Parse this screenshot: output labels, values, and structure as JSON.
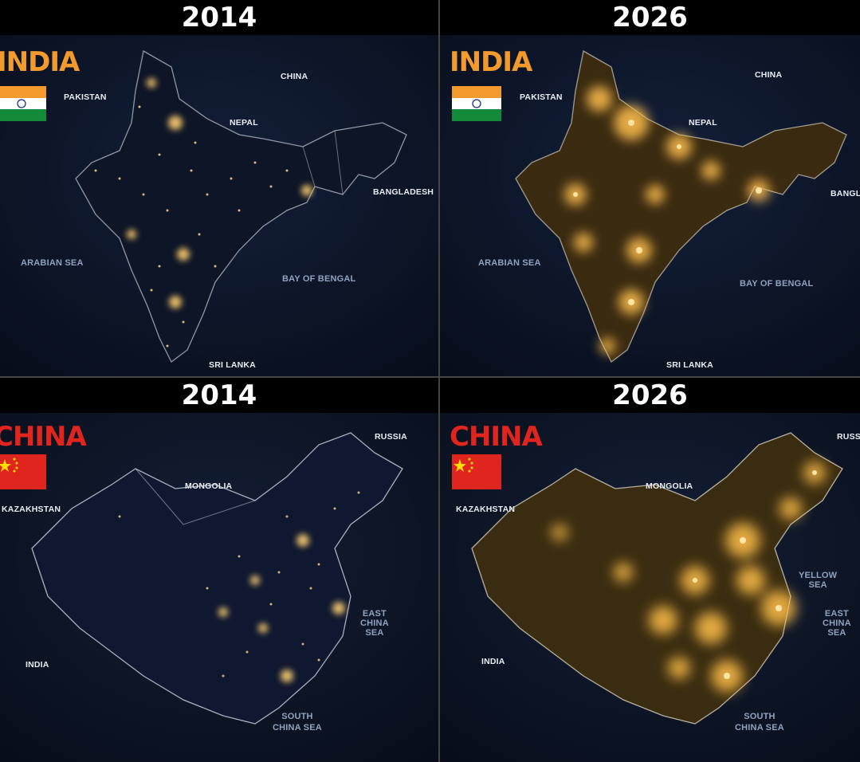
{
  "panels": [
    {
      "year": "2014",
      "country": "INDIA",
      "country_color": "#f29a2e",
      "flag": "india-flag",
      "labels": [
        "PAKISTAN",
        "CHINA",
        "NEPAL",
        "BANGLADESH",
        "ARABIAN SEA",
        "BAY OF BENGAL",
        "SRI LANKA"
      ]
    },
    {
      "year": "2026",
      "country": "INDIA",
      "country_color": "#f29a2e",
      "flag": "india-flag",
      "labels": [
        "PAKISTAN",
        "CHINA",
        "NEPAL",
        "BANGLA",
        "ARABIAN SEA",
        "BAY OF BENGAL",
        "SRI LANKA"
      ]
    },
    {
      "year": "2014",
      "country": "CHINA",
      "country_color": "#e0241e",
      "flag": "china-flag",
      "labels": [
        "RUSSIA",
        "MONGOLIA",
        "KAZAKHSTAN",
        "EAST\nCHINA\nSEA",
        "INDIA",
        "SOUTH\nCHINA SEA"
      ]
    },
    {
      "year": "2026",
      "country": "CHINA",
      "country_color": "#e0241e",
      "flag": "china-flag",
      "labels": [
        "RUSS",
        "MONGOLIA",
        "KAZAKHSTAN",
        "YELLOW\nSEA",
        "EAST\nCHINA\nSEA",
        "INDIA",
        "SOUTH\nCHINA SEA"
      ]
    }
  ]
}
